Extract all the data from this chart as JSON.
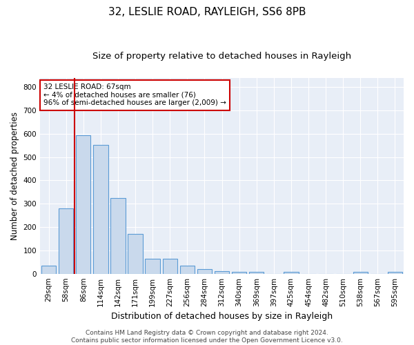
{
  "title1": "32, LESLIE ROAD, RAYLEIGH, SS6 8PB",
  "title2": "Size of property relative to detached houses in Rayleigh",
  "xlabel": "Distribution of detached houses by size in Rayleigh",
  "ylabel": "Number of detached properties",
  "categories": [
    "29sqm",
    "58sqm",
    "86sqm",
    "114sqm",
    "142sqm",
    "171sqm",
    "199sqm",
    "227sqm",
    "256sqm",
    "284sqm",
    "312sqm",
    "340sqm",
    "369sqm",
    "397sqm",
    "425sqm",
    "454sqm",
    "482sqm",
    "510sqm",
    "538sqm",
    "567sqm",
    "595sqm"
  ],
  "values": [
    35,
    280,
    595,
    553,
    325,
    170,
    65,
    63,
    35,
    20,
    12,
    8,
    8,
    0,
    8,
    0,
    0,
    0,
    8,
    0,
    8
  ],
  "bar_color": "#c9d9ec",
  "bar_edge_color": "#5b9bd5",
  "vline_x": 1.5,
  "vline_color": "#cc0000",
  "annotation_text": "32 LESLIE ROAD: 67sqm\n← 4% of detached houses are smaller (76)\n96% of semi-detached houses are larger (2,009) →",
  "annotation_box_color": "#ffffff",
  "annotation_box_edge": "#cc0000",
  "ylim": [
    0,
    840
  ],
  "yticks": [
    0,
    100,
    200,
    300,
    400,
    500,
    600,
    700,
    800
  ],
  "bg_color": "#e8eef7",
  "grid_color": "#ffffff",
  "footer": "Contains HM Land Registry data © Crown copyright and database right 2024.\nContains public sector information licensed under the Open Government Licence v3.0.",
  "title1_fontsize": 11,
  "title2_fontsize": 9.5,
  "xlabel_fontsize": 9,
  "ylabel_fontsize": 8.5,
  "tick_fontsize": 7.5,
  "footer_fontsize": 6.5,
  "ann_fontsize": 7.5
}
